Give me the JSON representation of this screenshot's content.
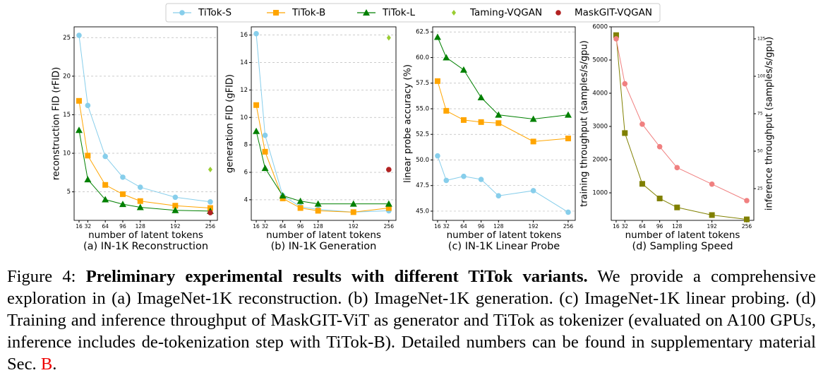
{
  "chart_data": [
    {
      "type": "line",
      "title": "(a) IN-1K Reconstruction",
      "xlabel": "number of latent tokens",
      "ylabel": "reconstruction FID (rFID)",
      "x": [
        16,
        32,
        64,
        96,
        128,
        192,
        256
      ],
      "xlim": [
        7,
        269
      ],
      "xticks": [
        16,
        32,
        64,
        96,
        128,
        192,
        256
      ],
      "ylim": [
        1.3,
        26.4
      ],
      "yticks": [
        5,
        10,
        15,
        20,
        25
      ],
      "grid": true,
      "series": [
        {
          "name": "TiTok-S",
          "color": "#87ceeb",
          "marker": "o",
          "values": [
            25.3,
            16.2,
            9.6,
            6.9,
            5.6,
            4.3,
            3.7
          ]
        },
        {
          "name": "TiTok-B",
          "color": "#ffa500",
          "marker": "s",
          "values": [
            16.8,
            9.7,
            5.9,
            4.7,
            3.8,
            3.2,
            2.9
          ]
        },
        {
          "name": "TiTok-L",
          "color": "#008000",
          "marker": "^",
          "values": [
            13.0,
            6.6,
            4.0,
            3.4,
            3.0,
            2.6,
            2.5
          ]
        },
        {
          "name": "Taming-VQGAN",
          "color": "#9acd32",
          "marker": "D",
          "x": [
            256
          ],
          "values": [
            7.9
          ]
        },
        {
          "name": "MaskGIT-VQGAN",
          "color": "#b22222",
          "marker": "o",
          "x": [
            256
          ],
          "values": [
            2.3
          ]
        }
      ]
    },
    {
      "type": "line",
      "title": "(b) IN-1K Generation",
      "xlabel": "number of latent tokens",
      "ylabel": "generation FID (gFID)",
      "x": [
        16,
        32,
        64,
        96,
        128,
        192,
        256
      ],
      "xlim": [
        7,
        269
      ],
      "xticks": [
        16,
        32,
        64,
        96,
        128,
        192,
        256
      ],
      "ylim": [
        2.5,
        16.6
      ],
      "yticks": [
        4,
        6,
        8,
        10,
        12,
        14,
        16
      ],
      "grid": true,
      "series": [
        {
          "name": "TiTok-S",
          "color": "#87ceeb",
          "marker": "o",
          "values": [
            16.1,
            8.7,
            4.3,
            3.5,
            3.3,
            3.1,
            3.2
          ]
        },
        {
          "name": "TiTok-B",
          "color": "#ffa500",
          "marker": "s",
          "values": [
            10.9,
            7.5,
            4.1,
            3.4,
            3.2,
            3.1,
            3.4
          ]
        },
        {
          "name": "TiTok-L",
          "color": "#008000",
          "marker": "^",
          "values": [
            9.0,
            6.3,
            4.3,
            3.9,
            3.7,
            3.7,
            3.7
          ]
        },
        {
          "name": "Taming-VQGAN",
          "color": "#9acd32",
          "marker": "D",
          "x": [
            256
          ],
          "values": [
            15.8
          ]
        },
        {
          "name": "MaskGIT-VQGAN",
          "color": "#b22222",
          "marker": "o",
          "x": [
            256
          ],
          "values": [
            6.2
          ]
        }
      ]
    },
    {
      "type": "line",
      "title": "(c) IN-1K Linear Probe",
      "xlabel": "number of latent tokens",
      "ylabel": "linear probe accuracy (%)",
      "x": [
        16,
        32,
        64,
        96,
        128,
        192,
        256
      ],
      "xlim": [
        7,
        269
      ],
      "xticks": [
        16,
        32,
        64,
        96,
        128,
        192,
        256
      ],
      "ylim": [
        44.1,
        63.0
      ],
      "yticks": [
        {
          "value": 45,
          "label": "45.0"
        },
        47.5,
        {
          "value": 50,
          "label": "50.0"
        },
        52.5,
        {
          "value": 55,
          "label": "55.0"
        },
        57.5,
        {
          "value": 60,
          "label": "60.0"
        },
        62.5
      ],
      "grid": true,
      "series": [
        {
          "name": "TiTok-S",
          "color": "#87ceeb",
          "marker": "o",
          "values": [
            50.4,
            48.0,
            48.4,
            48.1,
            46.5,
            47.0,
            44.9
          ]
        },
        {
          "name": "TiTok-B",
          "color": "#ffa500",
          "marker": "s",
          "values": [
            57.7,
            54.8,
            53.9,
            53.7,
            53.6,
            51.8,
            52.1
          ]
        },
        {
          "name": "TiTok-L",
          "color": "#008000",
          "marker": "^",
          "values": [
            62.0,
            60.0,
            58.8,
            56.1,
            54.4,
            54.0,
            54.4
          ]
        }
      ]
    },
    {
      "type": "line",
      "title": "(d) Sampling Speed",
      "xlabel": "number of latent tokens",
      "ylabel": "training throughput (samples/s/gpu)",
      "y2label": "inference throughput (samples/s/gpu)",
      "x": [
        16,
        32,
        64,
        96,
        128,
        192,
        256
      ],
      "xlim": [
        7,
        269
      ],
      "xticks": [
        16,
        32,
        64,
        96,
        128,
        192,
        256
      ],
      "ylim": [
        170,
        6000
      ],
      "yticks": [
        1000,
        2000,
        3000,
        4000,
        5000,
        6000
      ],
      "y2lim": [
        3.8,
        133
      ],
      "y2ticks": [
        25,
        50,
        75,
        100,
        125
      ],
      "grid": false,
      "series": [
        {
          "color": "#808000",
          "marker": "s",
          "values": [
            5750,
            2800,
            1270,
            830,
            560,
            330,
            200
          ]
        },
        {
          "color": "#f08080",
          "marker": "o",
          "axis": "y2",
          "values": [
            125,
            95,
            68,
            53,
            39,
            28,
            17
          ]
        }
      ]
    }
  ],
  "caption": {
    "label": "Figure 4:",
    "bold": "Preliminary experimental results with different TiTok variants.",
    "text": "We provide a comprehensive exploration in (a) ImageNet-1K reconstruction. (b) ImageNet-1K generation. (c) ImageNet-1K linear probing. (d) Training and inference throughput of MaskGIT-ViT as generator and TiTok as tokenizer (evaluated on A100 GPUs, inference includes de-tokenization step with TiTok-B). Detailed numbers can be found in supplementary material Sec.",
    "ref": "B",
    "end": "."
  }
}
